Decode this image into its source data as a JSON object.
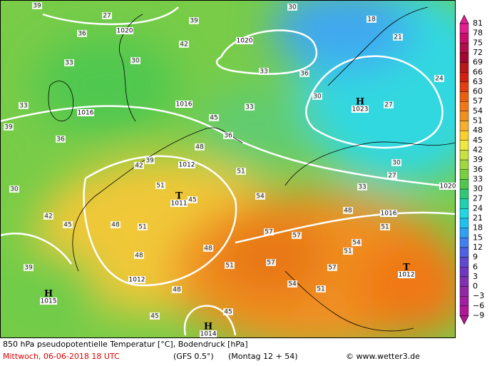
{
  "map": {
    "centers": [
      {
        "letter": "H",
        "pressure": "1023"
      },
      {
        "letter": "H",
        "pressure": "1015"
      },
      {
        "letter": "T",
        "pressure": "1011"
      },
      {
        "letter": "T",
        "pressure": "1012"
      },
      {
        "letter": "H",
        "pressure": "1014"
      }
    ],
    "isobar_labels": [
      "1020",
      "1020",
      "1016",
      "1016",
      "1012",
      "1012",
      "1016",
      "1020"
    ],
    "contour_labels": [
      "39",
      "27",
      "36",
      "33",
      "30",
      "42",
      "39",
      "33",
      "30",
      "36",
      "18",
      "21",
      "24",
      "27",
      "30",
      "33",
      "36",
      "39",
      "42",
      "45",
      "48",
      "51",
      "54",
      "57",
      "57",
      "51",
      "48",
      "51",
      "48",
      "45",
      "48",
      "51",
      "54",
      "57",
      "51",
      "45",
      "39",
      "42",
      "45",
      "36",
      "39",
      "33",
      "30",
      "27",
      "30",
      "33",
      "48",
      "51",
      "54",
      "57",
      "51",
      "45",
      "48"
    ]
  },
  "colorbar": {
    "labels": [
      "81",
      "78",
      "75",
      "72",
      "69",
      "66",
      "63",
      "60",
      "57",
      "54",
      "51",
      "48",
      "45",
      "42",
      "39",
      "36",
      "33",
      "30",
      "27",
      "24",
      "21",
      "18",
      "15",
      "12",
      "9",
      "6",
      "3",
      "0",
      "−3",
      "−6",
      "−9"
    ],
    "colors": [
      "#e0208f",
      "#c8106a",
      "#b0104a",
      "#a00830",
      "#b81818",
      "#d02010",
      "#e04010",
      "#e86010",
      "#f07818",
      "#f09020",
      "#f5b030",
      "#f8d030",
      "#f0e840",
      "#c8e040",
      "#a0d840",
      "#78d040",
      "#50c850",
      "#30c878",
      "#20d0b0",
      "#20d8e0",
      "#20c0f0",
      "#30a0f0",
      "#4080f0",
      "#5060e0",
      "#6048d0",
      "#7038c0",
      "#8030b0",
      "#9028a8",
      "#a020a0",
      "#b01898"
    ]
  },
  "footer": {
    "title": "850 hPa pseudopotentielle Temperatur [°C], Bodendruck [hPa]",
    "date": "Mittwoch, 06-06-2018  18 UTC",
    "model": "(GFS 0.5°)",
    "run": "(Montag 12 + 54)",
    "credit": "© www.wetter3.de"
  }
}
